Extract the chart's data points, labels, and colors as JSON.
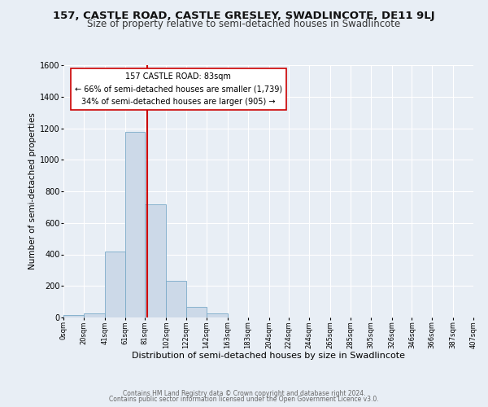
{
  "title": "157, CASTLE ROAD, CASTLE GRESLEY, SWADLINCOTE, DE11 9LJ",
  "subtitle": "Size of property relative to semi-detached houses in Swadlincote",
  "xlabel": "Distribution of semi-detached houses by size in Swadlincote",
  "ylabel": "Number of semi-detached properties",
  "bin_edges": [
    0,
    20,
    41,
    61,
    81,
    102,
    122,
    142,
    163,
    183,
    204,
    224,
    244,
    265,
    285,
    305,
    326,
    346,
    366,
    387,
    407
  ],
  "bar_heights": [
    15,
    25,
    420,
    1175,
    715,
    230,
    65,
    25,
    0,
    0,
    0,
    0,
    0,
    0,
    0,
    0,
    0,
    0,
    0,
    0
  ],
  "bar_color": "#ccd9e8",
  "bar_edge_color": "#7aaac8",
  "property_size": 83,
  "vline_color": "#cc0000",
  "annotation_title": "157 CASTLE ROAD: 83sqm",
  "annotation_line1": "← 66% of semi-detached houses are smaller (1,739)",
  "annotation_line2": "34% of semi-detached houses are larger (905) →",
  "annotation_box_color": "#ffffff",
  "annotation_box_edge": "#cc0000",
  "ylim": [
    0,
    1600
  ],
  "yticks": [
    0,
    200,
    400,
    600,
    800,
    1000,
    1200,
    1400,
    1600
  ],
  "tick_labels": [
    "0sqm",
    "20sqm",
    "41sqm",
    "61sqm",
    "81sqm",
    "102sqm",
    "122sqm",
    "142sqm",
    "163sqm",
    "183sqm",
    "204sqm",
    "224sqm",
    "244sqm",
    "265sqm",
    "285sqm",
    "305sqm",
    "326sqm",
    "346sqm",
    "366sqm",
    "387sqm",
    "407sqm"
  ],
  "footer1": "Contains HM Land Registry data © Crown copyright and database right 2024.",
  "footer2": "Contains public sector information licensed under the Open Government Licence v3.0.",
  "background_color": "#e8eef5",
  "grid_color": "#ffffff",
  "title_fontsize": 9.5,
  "subtitle_fontsize": 8.5
}
